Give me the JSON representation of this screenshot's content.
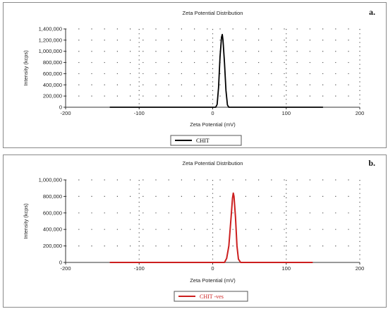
{
  "chart_data": [
    {
      "type": "line",
      "panel_label": "a.",
      "title": "Zeta Potential Distribution",
      "xlabel": "Zeta Potential (mV)",
      "ylabel": "Intensity (kcps)",
      "xlim": [
        -200,
        200
      ],
      "ylim": [
        0,
        1400000
      ],
      "xticks": [
        -200,
        -100,
        0,
        100,
        200
      ],
      "xtick_labels": [
        "-200",
        "-100",
        "0",
        "100",
        "200"
      ],
      "yticks": [
        0,
        200000,
        400000,
        600000,
        800000,
        1000000,
        1200000,
        1400000
      ],
      "ytick_labels": [
        "0",
        "200,000",
        "400,000",
        "600,000",
        "800,000",
        "1,000,000",
        "1,200,000",
        "1,400,000"
      ],
      "grid": true,
      "legend_position": "bottom-center",
      "series": [
        {
          "name": "CHIT",
          "color": "#000000",
          "x": [
            -140,
            0,
            4,
            6,
            8,
            10,
            12,
            13,
            14,
            16,
            18,
            20,
            22,
            150
          ],
          "y": [
            0,
            0,
            0,
            50000,
            350000,
            900000,
            1250000,
            1300000,
            1200000,
            800000,
            300000,
            40000,
            0,
            0
          ]
        }
      ]
    },
    {
      "type": "line",
      "panel_label": "b.",
      "title": "Zeta Potential Distribution",
      "xlabel": "Zeta Potential (mV)",
      "ylabel": "Intensity (kcps)",
      "xlim": [
        -200,
        200
      ],
      "ylim": [
        0,
        1000000
      ],
      "xticks": [
        -200,
        -100,
        0,
        100,
        200
      ],
      "xtick_labels": [
        "-200",
        "-100",
        "0",
        "100",
        "200"
      ],
      "yticks": [
        0,
        200000,
        400000,
        600000,
        800000,
        1000000
      ],
      "ytick_labels": [
        "0",
        "200,000",
        "400,000",
        "600,000",
        "800,000",
        "1,000,000"
      ],
      "grid": true,
      "legend_position": "bottom-center",
      "series": [
        {
          "name": "CHIT -ves",
          "color": "#cc1f1f",
          "x": [
            -140,
            10,
            16,
            19,
            22,
            25,
            27,
            28,
            29,
            31,
            33,
            35,
            38,
            136
          ],
          "y": [
            0,
            0,
            0,
            50000,
            200000,
            550000,
            780000,
            840000,
            800000,
            550000,
            200000,
            40000,
            0,
            0
          ]
        }
      ]
    }
  ]
}
